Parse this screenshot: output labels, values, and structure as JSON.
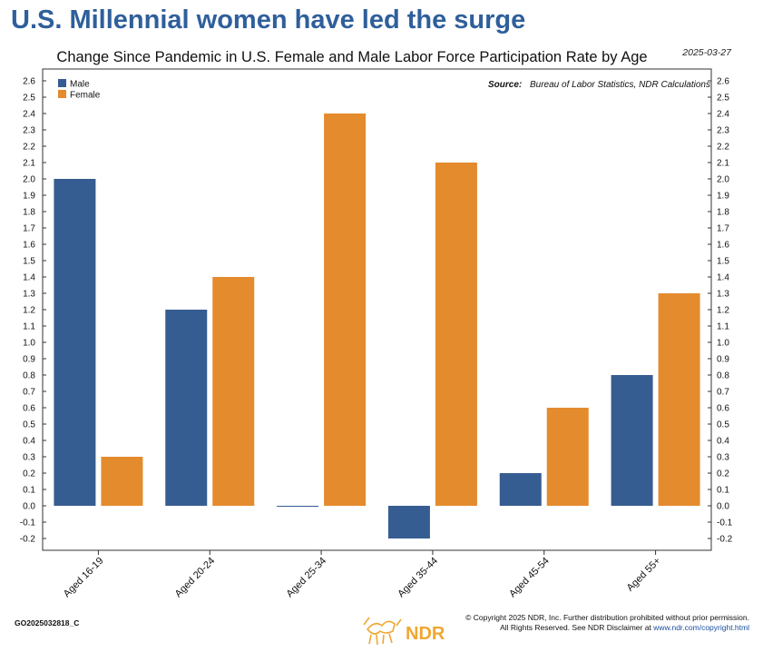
{
  "headline": "U.S. Millennial women have led the surge",
  "date": "2025-03-27",
  "source_label": "Source:",
  "source_text": "Bureau of Labor Statistics, NDR Calculations",
  "chart_id": "GO2025032818_C",
  "copyright_line1": "© Copyright 2025 NDR, Inc. Further distribution prohibited without prior permission.",
  "copyright_line2": "All Rights Reserved. See NDR Disclaimer at ",
  "copyright_link": "www.ndr.com/copyright.html",
  "logo_text": "NDR",
  "colors": {
    "male": "#365d91",
    "female": "#e48b2e",
    "headline": "#2f5f9b",
    "logo": "#f0a732"
  },
  "chart_data": {
    "type": "bar",
    "title": "Change Since Pandemic in U.S. Female and Male Labor Force Participation Rate by Age",
    "categories": [
      "Aged 16-19",
      "Aged 20-24",
      "Aged 25-34",
      "Aged 35-44",
      "Aged 45-54",
      "Aged 55+"
    ],
    "series": [
      {
        "name": "Male",
        "values": [
          2.0,
          1.2,
          0.0,
          -0.2,
          0.2,
          0.8
        ]
      },
      {
        "name": "Female",
        "values": [
          0.3,
          1.4,
          2.4,
          2.1,
          0.6,
          1.3
        ]
      }
    ],
    "ylim": [
      -0.2,
      2.6
    ],
    "yticks": [
      "2.6",
      "2.5",
      "2.4",
      "2.3",
      "2.2",
      "2.1",
      "2.0",
      "1.9",
      "1.8",
      "1.7",
      "1.6",
      "1.5",
      "1.4",
      "1.3",
      "1.2",
      "1.1",
      "1.0",
      "0.9",
      "0.8",
      "0.7",
      "0.6",
      "0.5",
      "0.4",
      "0.3",
      "0.2",
      "0.1",
      "0.0",
      "-0.1",
      "-0.2"
    ],
    "legend_position": "top-left",
    "grid": false
  }
}
